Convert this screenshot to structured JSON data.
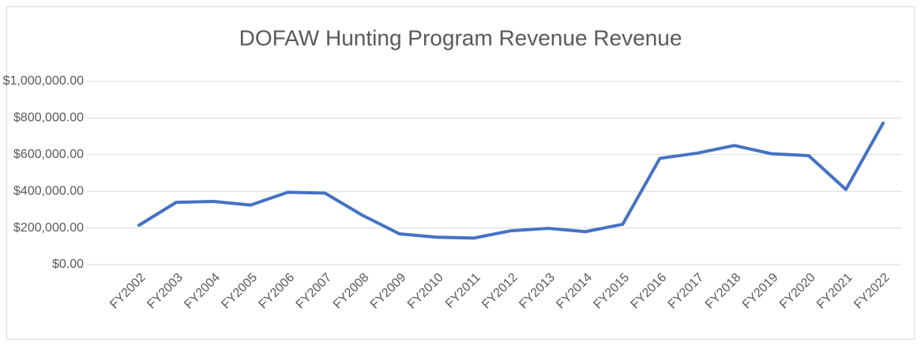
{
  "chart_data": {
    "type": "line",
    "title": "DOFAW Hunting Program Revenue Revenue",
    "categories": [
      "FY2002",
      "FY2003",
      "FY2004",
      "FY2005",
      "FY2006",
      "FY2007",
      "FY2008",
      "FY2009",
      "FY2010",
      "FY2011",
      "FY2012",
      "FY2013",
      "FY2014",
      "FY2015",
      "FY2016",
      "FY2017",
      "FY2018",
      "FY2019",
      "FY2020",
      "FY2021",
      "FY2022"
    ],
    "values": [
      215000,
      340000,
      345000,
      325000,
      395000,
      390000,
      270000,
      168000,
      150000,
      145000,
      185000,
      198000,
      180000,
      220000,
      580000,
      608000,
      650000,
      605000,
      595000,
      410000,
      772000
    ],
    "color": "#4472c4",
    "ylim": [
      0,
      1000000
    ],
    "yticks": [
      {
        "value": 0,
        "label": "$0.00"
      },
      {
        "value": 200000,
        "label": "$200,000.00"
      },
      {
        "value": 400000,
        "label": "$400,000.00"
      },
      {
        "value": 600000,
        "label": "$600,000.00"
      },
      {
        "value": 800000,
        "label": "$800,000.00"
      },
      {
        "value": 1000000,
        "label": "$1,000,000.00"
      }
    ],
    "grid": true
  }
}
